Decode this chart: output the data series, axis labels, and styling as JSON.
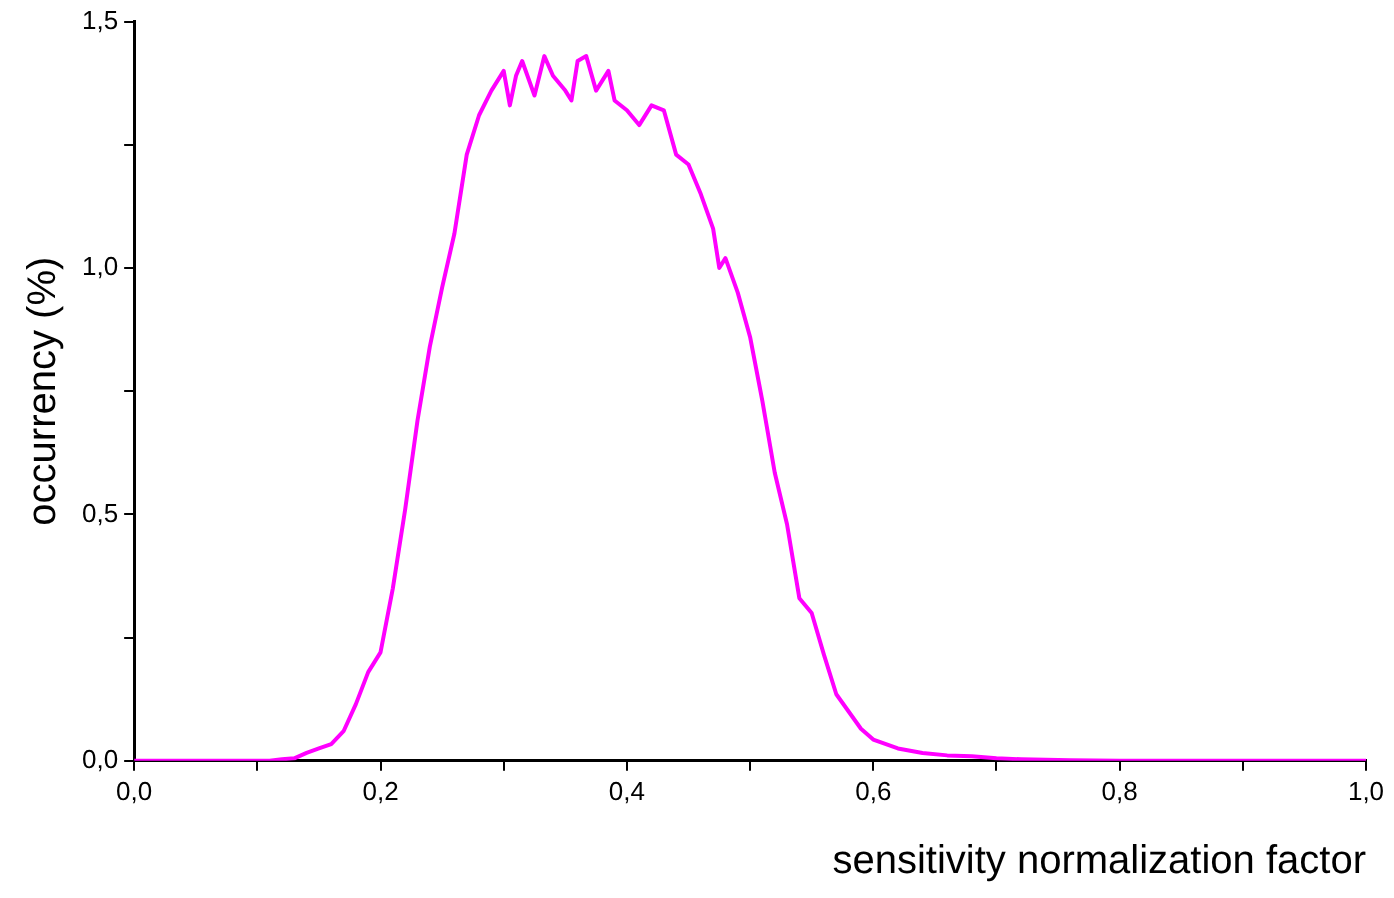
{
  "chart_data": {
    "type": "line",
    "xlabel": "sensitivity normalization factor",
    "ylabel": "occurrency (%)",
    "series": [
      {
        "color": "#ff00ff",
        "x": [
          0,
          0.05,
          0.1,
          0.11,
          0.12,
          0.13,
          0.14,
          0.15,
          0.16,
          0.17,
          0.18,
          0.19,
          0.2,
          0.21,
          0.22,
          0.23,
          0.24,
          0.25,
          0.26,
          0.27,
          0.28,
          0.29,
          0.3,
          0.305,
          0.31,
          0.315,
          0.325,
          0.333,
          0.34,
          0.35,
          0.355,
          0.36,
          0.367,
          0.375,
          0.385,
          0.39,
          0.4,
          0.41,
          0.42,
          0.43,
          0.44,
          0.45,
          0.46,
          0.47,
          0.475,
          0.48,
          0.49,
          0.5,
          0.51,
          0.52,
          0.53,
          0.54,
          0.55,
          0.56,
          0.57,
          0.58,
          0.59,
          0.6,
          0.62,
          0.64,
          0.66,
          0.68,
          0.7,
          0.72,
          0.74,
          0.76,
          0.8,
          0.9,
          1
        ],
        "values": [
          0,
          0,
          0,
          0,
          0.003,
          0.005,
          0.016,
          0.025,
          0.034,
          0.06,
          0.115,
          0.18,
          0.22,
          0.35,
          0.51,
          0.69,
          0.84,
          0.96,
          1.07,
          1.23,
          1.31,
          1.36,
          1.4,
          1.33,
          1.39,
          1.42,
          1.35,
          1.43,
          1.39,
          1.36,
          1.34,
          1.42,
          1.43,
          1.36,
          1.4,
          1.34,
          1.32,
          1.29,
          1.33,
          1.32,
          1.23,
          1.21,
          1.15,
          1.08,
          1.0,
          1.02,
          0.95,
          0.86,
          0.73,
          0.585,
          0.48,
          0.33,
          0.3,
          0.215,
          0.135,
          0.1,
          0.065,
          0.043,
          0.025,
          0.016,
          0.011,
          0.009,
          0.005,
          0.003,
          0.002,
          0.001,
          0,
          0,
          0
        ]
      }
    ],
    "xlim": [
      0,
      1
    ],
    "ylim": [
      0,
      1.5
    ],
    "xticks": [
      {
        "value": 0,
        "label": "0,0"
      },
      {
        "value": 0.1,
        "label": null
      },
      {
        "value": 0.2,
        "label": "0,2"
      },
      {
        "value": 0.3,
        "label": null
      },
      {
        "value": 0.4,
        "label": "0,4"
      },
      {
        "value": 0.5,
        "label": null
      },
      {
        "value": 0.6,
        "label": "0,6"
      },
      {
        "value": 0.7,
        "label": null
      },
      {
        "value": 0.8,
        "label": "0,8"
      },
      {
        "value": 0.9,
        "label": null
      },
      {
        "value": 1,
        "label": "1,0"
      }
    ],
    "yticks": [
      {
        "value": 0,
        "label": "0,0"
      },
      {
        "value": 0.25,
        "label": null
      },
      {
        "value": 0.5,
        "label": "0,5"
      },
      {
        "value": 0.75,
        "label": null
      },
      {
        "value": 1,
        "label": "1,0"
      },
      {
        "value": 1.25,
        "label": null
      },
      {
        "value": 1.5,
        "label": "1,5"
      }
    ],
    "grid": false,
    "legend": false,
    "marker": "none",
    "line_style": "solid"
  }
}
